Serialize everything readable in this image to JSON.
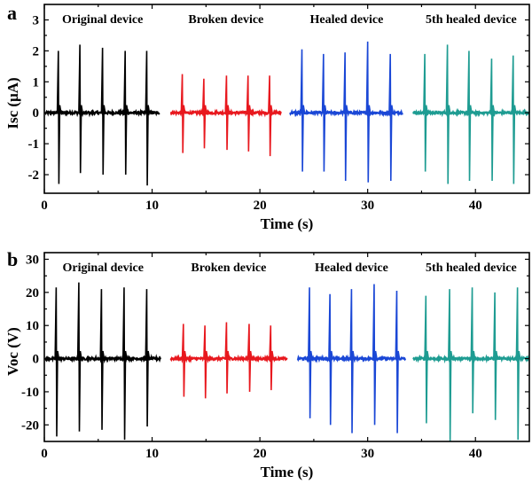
{
  "chart_data": [
    {
      "type": "line",
      "panel_label": "a",
      "ylabel": "Isc (μA)",
      "xlabel": "Time (s)",
      "xlim": [
        0,
        45
      ],
      "ylim": [
        -2.6,
        3.5
      ],
      "xticks": [
        0,
        10,
        20,
        30,
        40
      ],
      "yticks": [
        -2,
        -1,
        0,
        1,
        2,
        3
      ],
      "grid": false,
      "segments": [
        {
          "name": "Original device",
          "color": "#000000",
          "t_start": 0.1,
          "t_end": 10.7,
          "spikes": [
            {
              "t": 1.3,
              "pos": 2.0,
              "neg": -2.3
            },
            {
              "t": 3.3,
              "pos": 2.2,
              "neg": -1.95
            },
            {
              "t": 5.4,
              "pos": 2.1,
              "neg": -2.0
            },
            {
              "t": 7.5,
              "pos": 2.0,
              "neg": -2.0
            },
            {
              "t": 9.5,
              "pos": 2.0,
              "neg": -2.35
            }
          ]
        },
        {
          "name": "Broken device",
          "color": "#e8181e",
          "t_start": 11.7,
          "t_end": 22.0,
          "spikes": [
            {
              "t": 12.8,
              "pos": 1.25,
              "neg": -1.3
            },
            {
              "t": 14.8,
              "pos": 1.1,
              "neg": -1.15
            },
            {
              "t": 16.9,
              "pos": 1.2,
              "neg": -1.2
            },
            {
              "t": 18.9,
              "pos": 1.2,
              "neg": -1.25
            },
            {
              "t": 20.9,
              "pos": 1.2,
              "neg": -1.4
            }
          ]
        },
        {
          "name": "Healed device",
          "color": "#1a47d6",
          "t_start": 22.8,
          "t_end": 33.3,
          "spikes": [
            {
              "t": 23.9,
              "pos": 2.05,
              "neg": -1.9
            },
            {
              "t": 25.9,
              "pos": 1.9,
              "neg": -1.9
            },
            {
              "t": 27.9,
              "pos": 1.95,
              "neg": -2.2
            },
            {
              "t": 30.0,
              "pos": 2.3,
              "neg": -2.25
            },
            {
              "t": 32.1,
              "pos": 1.9,
              "neg": -2.2
            }
          ]
        },
        {
          "name": "5th healed device",
          "color": "#1e9c92",
          "t_start": 34.2,
          "t_end": 45.0,
          "spikes": [
            {
              "t": 35.3,
              "pos": 1.9,
              "neg": -1.9
            },
            {
              "t": 37.4,
              "pos": 2.2,
              "neg": -2.3
            },
            {
              "t": 39.4,
              "pos": 2.0,
              "neg": -2.2
            },
            {
              "t": 41.5,
              "pos": 1.75,
              "neg": -2.2
            },
            {
              "t": 43.5,
              "pos": 1.85,
              "neg": -2.3
            }
          ]
        }
      ]
    },
    {
      "type": "line",
      "panel_label": "b",
      "ylabel": "Voc (V)",
      "xlabel": "Time (s)",
      "xlim": [
        0,
        45
      ],
      "ylim": [
        -25,
        32
      ],
      "xticks": [
        0,
        10,
        20,
        30,
        40
      ],
      "yticks": [
        -20,
        -10,
        0,
        10,
        20,
        30
      ],
      "grid": false,
      "segments": [
        {
          "name": "Original device",
          "color": "#000000",
          "t_start": 0.1,
          "t_end": 10.8,
          "spikes": [
            {
              "t": 1.1,
              "pos": 21.5,
              "neg": -23.5
            },
            {
              "t": 3.2,
              "pos": 23.0,
              "neg": -22.0
            },
            {
              "t": 5.3,
              "pos": 21.0,
              "neg": -21.5
            },
            {
              "t": 7.4,
              "pos": 21.5,
              "neg": -24.5
            },
            {
              "t": 9.5,
              "pos": 21.0,
              "neg": -20.5
            }
          ]
        },
        {
          "name": "Broken device",
          "color": "#e8181e",
          "t_start": 11.7,
          "t_end": 22.5,
          "spikes": [
            {
              "t": 12.9,
              "pos": 10.5,
              "neg": -11.5
            },
            {
              "t": 14.9,
              "pos": 10.0,
              "neg": -12.0
            },
            {
              "t": 16.9,
              "pos": 11.0,
              "neg": -10.5
            },
            {
              "t": 19.0,
              "pos": 10.5,
              "neg": -10.0
            },
            {
              "t": 21.0,
              "pos": 10.0,
              "neg": -9.5
            }
          ]
        },
        {
          "name": "Healed device",
          "color": "#1a47d6",
          "t_start": 23.5,
          "t_end": 33.5,
          "spikes": [
            {
              "t": 24.6,
              "pos": 21.5,
              "neg": -18.0
            },
            {
              "t": 26.5,
              "pos": 19.5,
              "neg": -20.0
            },
            {
              "t": 28.5,
              "pos": 21.0,
              "neg": -22.5
            },
            {
              "t": 30.6,
              "pos": 22.5,
              "neg": -20.0
            },
            {
              "t": 32.7,
              "pos": 20.5,
              "neg": -22.5
            }
          ]
        },
        {
          "name": "5th healed device",
          "color": "#1e9c92",
          "t_start": 34.2,
          "t_end": 45.0,
          "spikes": [
            {
              "t": 35.4,
              "pos": 19.0,
              "neg": -19.5
            },
            {
              "t": 37.6,
              "pos": 21.0,
              "neg": -25.0
            },
            {
              "t": 39.7,
              "pos": 21.5,
              "neg": -16.5
            },
            {
              "t": 41.8,
              "pos": 20.0,
              "neg": -18.5
            },
            {
              "t": 43.9,
              "pos": 21.5,
              "neg": -24.5
            }
          ]
        }
      ]
    }
  ]
}
